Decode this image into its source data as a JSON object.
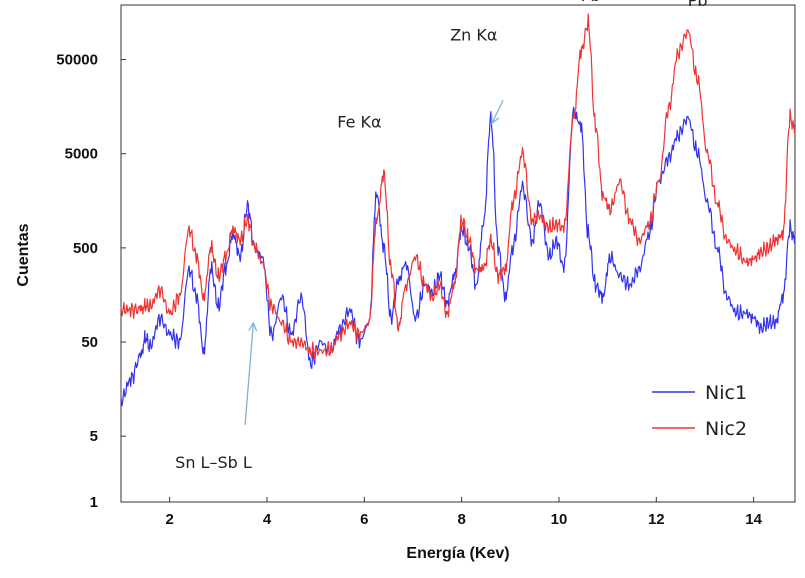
{
  "chart_data": {
    "type": "line",
    "xlabel": "Energía (Kev)",
    "ylabel": "Cuentas",
    "xlim": [
      1,
      14.85
    ],
    "ylim": [
      1,
      190000
    ],
    "yscale": "log",
    "x_ticks": [
      2,
      4,
      6,
      8,
      10,
      12,
      14
    ],
    "x_tick_labels": [
      "2",
      "4",
      "6",
      "8",
      "10",
      "12",
      "14"
    ],
    "y_ticks": [
      1,
      5,
      50,
      500,
      5000,
      50000
    ],
    "y_tick_labels": [
      "1",
      "5",
      "50",
      "500",
      "5000",
      "50000"
    ],
    "grid": false,
    "legend": "bottom-right",
    "series": [
      {
        "name": "Nic1",
        "color": "#3333ee",
        "x": [
          1.0,
          1.2,
          1.4,
          1.5,
          1.6,
          1.8,
          2.0,
          2.2,
          2.4,
          2.55,
          2.7,
          2.85,
          3.0,
          3.15,
          3.3,
          3.45,
          3.6,
          3.75,
          3.9,
          4.1,
          4.3,
          4.5,
          4.7,
          4.9,
          5.1,
          5.3,
          5.5,
          5.7,
          5.9,
          6.1,
          6.25,
          6.4,
          6.55,
          6.7,
          6.85,
          7.05,
          7.25,
          7.4,
          7.55,
          7.7,
          7.85,
          8.0,
          8.15,
          8.3,
          8.45,
          8.6,
          8.75,
          8.9,
          9.05,
          9.25,
          9.45,
          9.6,
          9.8,
          9.95,
          10.1,
          10.3,
          10.45,
          10.6,
          10.75,
          10.9,
          11.05,
          11.25,
          11.45,
          11.65,
          11.85,
          12.05,
          12.25,
          12.45,
          12.65,
          12.85,
          13.05,
          13.25,
          13.45,
          13.65,
          13.85,
          14.0,
          14.15,
          14.3,
          14.45,
          14.6,
          14.75,
          14.85
        ],
        "y": [
          12,
          20,
          35,
          55,
          45,
          90,
          60,
          50,
          300,
          150,
          40,
          300,
          120,
          300,
          700,
          400,
          1400,
          500,
          400,
          60,
          150,
          60,
          150,
          30,
          50,
          40,
          70,
          110,
          50,
          80,
          1900,
          500,
          90,
          220,
          350,
          90,
          200,
          170,
          250,
          130,
          250,
          800,
          500,
          200,
          900,
          12000,
          500,
          150,
          500,
          2200,
          600,
          1500,
          400,
          600,
          300,
          14000,
          10000,
          700,
          200,
          150,
          400,
          250,
          200,
          300,
          700,
          2500,
          4500,
          8000,
          12000,
          5000,
          1500,
          500,
          150,
          100,
          100,
          90,
          70,
          80,
          80,
          150,
          800,
          600
        ]
      },
      {
        "name": "Nic2",
        "color": "#ee3333",
        "x": [
          1.0,
          1.2,
          1.4,
          1.5,
          1.6,
          1.8,
          2.0,
          2.2,
          2.4,
          2.55,
          2.7,
          2.85,
          3.0,
          3.15,
          3.3,
          3.45,
          3.6,
          3.75,
          3.9,
          4.1,
          4.3,
          4.5,
          4.7,
          4.9,
          5.1,
          5.3,
          5.5,
          5.7,
          5.9,
          6.1,
          6.25,
          6.4,
          6.55,
          6.7,
          6.85,
          7.05,
          7.25,
          7.4,
          7.55,
          7.7,
          7.85,
          8.0,
          8.15,
          8.3,
          8.45,
          8.6,
          8.75,
          8.9,
          9.05,
          9.25,
          9.45,
          9.6,
          9.8,
          9.95,
          10.1,
          10.3,
          10.45,
          10.6,
          10.75,
          10.9,
          11.05,
          11.25,
          11.45,
          11.65,
          11.85,
          12.05,
          12.25,
          12.45,
          12.65,
          12.85,
          13.05,
          13.25,
          13.45,
          13.65,
          13.85,
          14.0,
          14.15,
          14.3,
          14.45,
          14.6,
          14.75,
          14.85
        ],
        "y": [
          110,
          110,
          110,
          120,
          120,
          180,
          100,
          150,
          800,
          400,
          150,
          500,
          250,
          400,
          800,
          600,
          1000,
          500,
          350,
          120,
          80,
          50,
          50,
          40,
          40,
          40,
          60,
          80,
          60,
          80,
          1000,
          3000,
          300,
          70,
          200,
          400,
          200,
          150,
          200,
          100,
          200,
          1000,
          600,
          300,
          300,
          600,
          250,
          300,
          1500,
          5000,
          1000,
          1100,
          800,
          900,
          800,
          12000,
          60000,
          120000,
          10000,
          1800,
          1300,
          2500,
          1000,
          600,
          900,
          2500,
          15000,
          60000,
          100000,
          30000,
          5000,
          1500,
          600,
          450,
          350,
          380,
          450,
          500,
          600,
          700,
          12000,
          9000
        ]
      }
    ],
    "annotations": [
      {
        "text": "Pb",
        "x": 10.65,
        "y": 210000
      },
      {
        "text": "Pb",
        "x": 12.85,
        "y": 185000
      },
      {
        "text": "Zn Kα",
        "x": 8.25,
        "y": 80000
      },
      {
        "text": "Fe Kα",
        "x": 5.9,
        "y": 9500
      },
      {
        "text": "Sn L–Sb L",
        "x": 2.9,
        "y": 2.3
      }
    ],
    "arrows": [
      {
        "from": [
          8.85,
          18500
        ],
        "to": [
          8.62,
          10500
        ]
      },
      {
        "from": [
          3.55,
          6.6
        ],
        "to": [
          3.72,
          80
        ]
      }
    ]
  }
}
